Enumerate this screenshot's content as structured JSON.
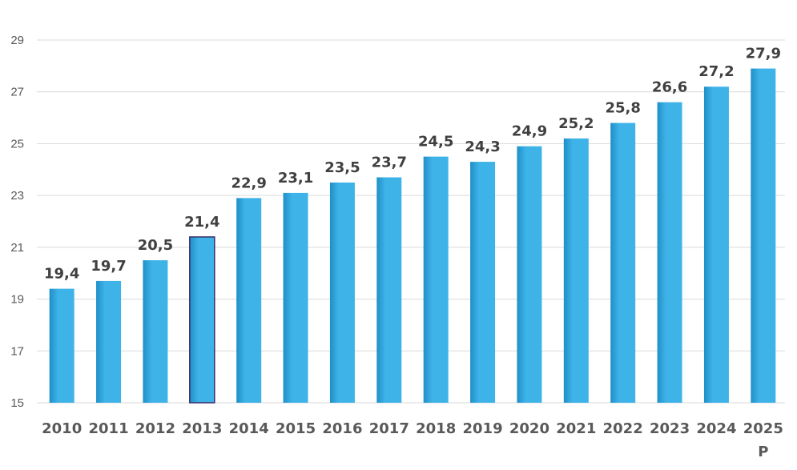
{
  "chart_data": {
    "type": "bar",
    "categories": [
      "2010",
      "2011",
      "2012",
      "2013",
      "2014",
      "2015",
      "2016",
      "2017",
      "2018",
      "2019",
      "2020",
      "2021",
      "2022",
      "2023",
      "2024",
      "2025"
    ],
    "category_sublabels": [
      "",
      "",
      "",
      "",
      "",
      "",
      "",
      "",
      "",
      "",
      "",
      "",
      "",
      "",
      "",
      "P"
    ],
    "values": [
      19.4,
      19.7,
      20.5,
      21.4,
      22.9,
      23.1,
      23.5,
      23.7,
      24.5,
      24.3,
      24.9,
      25.2,
      25.8,
      26.6,
      27.2,
      27.9
    ],
    "data_labels": [
      "19,4",
      "19,7",
      "20,5",
      "21,4",
      "22,9",
      "23,1",
      "23,5",
      "23,7",
      "24,5",
      "24,3",
      "24,9",
      "25,2",
      "25,8",
      "26,6",
      "27,2",
      "27,9"
    ],
    "yticks": [
      15,
      17,
      19,
      21,
      23,
      25,
      27,
      29
    ],
    "ylim": [
      15,
      29
    ],
    "grid": true,
    "bar_color": "#3eb3e8",
    "bar_color_dark": "#1f8fc7",
    "highlight_index": 3,
    "highlight_border": "#3a2a6a"
  }
}
